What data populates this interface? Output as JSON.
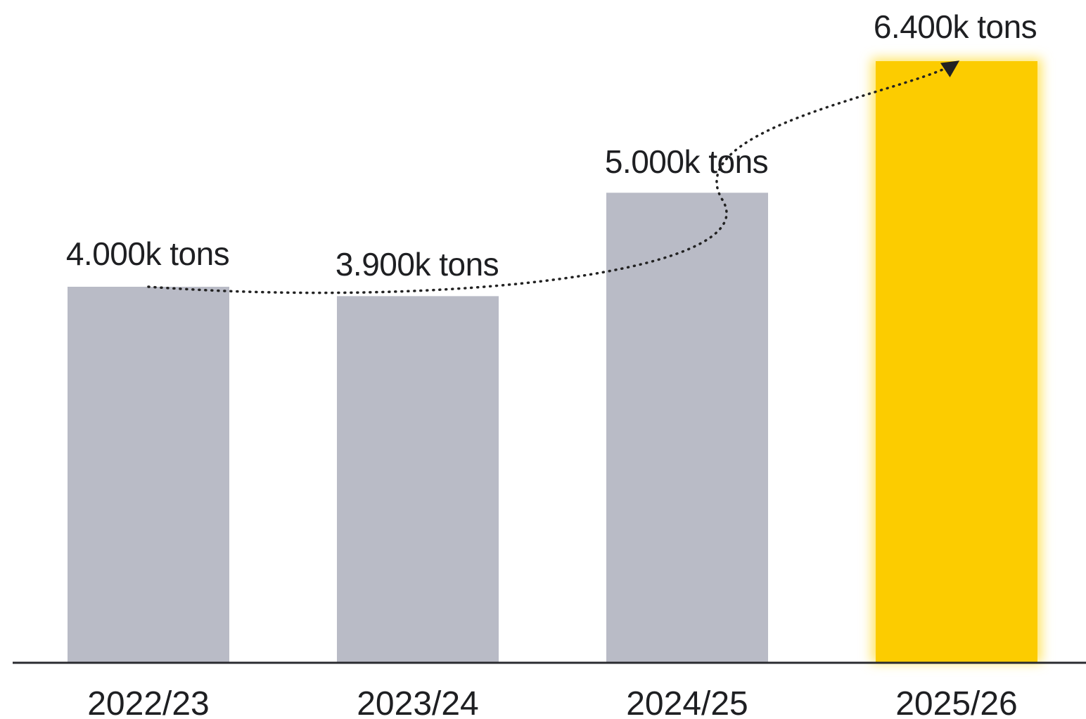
{
  "chart_data": {
    "type": "bar",
    "categories": [
      "2022/23",
      "2023/24",
      "2024/25",
      "2025/26"
    ],
    "values": [
      4000,
      3900,
      5000,
      6400
    ],
    "data_labels": [
      "4.000k tons",
      "3.900k tons",
      "5.000k tons",
      "6.400k tons"
    ],
    "unit": "k tons",
    "ylim": [
      0,
      6400
    ],
    "highlight_index": 3,
    "grid": false,
    "legend": "none",
    "trend_line": "dotted curve with arrow connecting bar tops"
  },
  "colors": {
    "bar": "#b9bbc6",
    "highlight": "#fccc00",
    "highlight_glow": "#ffe566",
    "axis": "#2a2b30",
    "text": "#1e1f22",
    "trend": "#222222"
  }
}
